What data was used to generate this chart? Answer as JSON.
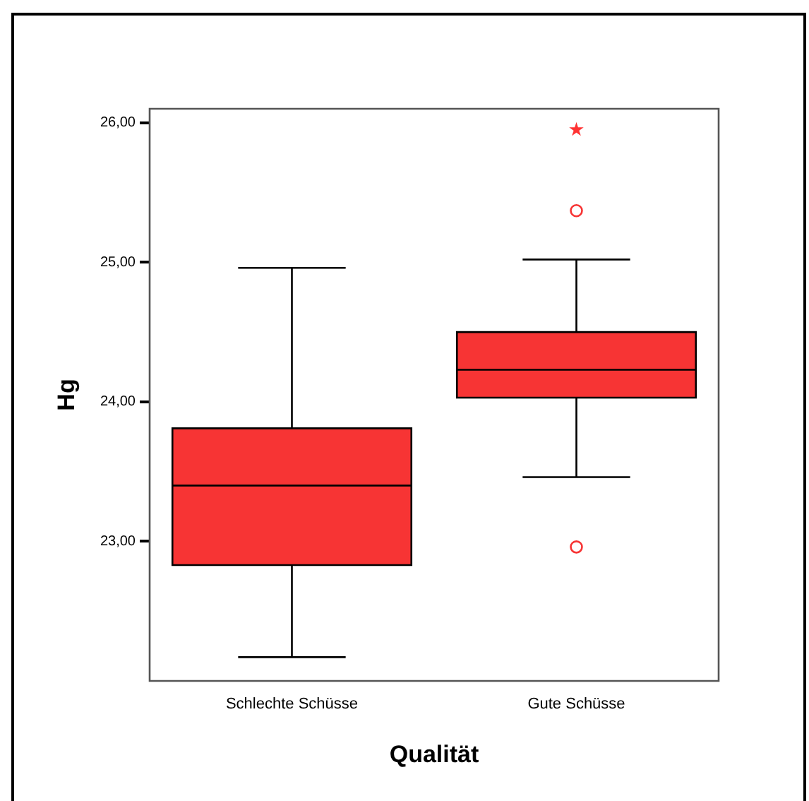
{
  "chart_data": {
    "type": "box",
    "xlabel": "Qualität",
    "ylabel": "Hg",
    "categories": [
      "Schlechte Schüsse",
      "Gute Schüsse"
    ],
    "color": "#f73434",
    "boxes": [
      {
        "low": 22.17,
        "q1": 22.83,
        "median": 23.4,
        "q3": 23.81,
        "high": 24.96
      },
      {
        "low": 23.46,
        "q1": 24.03,
        "median": 24.23,
        "q3": 24.5,
        "high": 25.02,
        "outliers": [
          25.37,
          22.96
        ]
      }
    ],
    "series": [
      {
        "type": "scatter",
        "marker": "star",
        "color": "#ff3333",
        "values": [
          null,
          25.95
        ]
      }
    ],
    "ylim": [
      22.0,
      26.1
    ],
    "yticks": [
      {
        "value": 23,
        "label": "23,00"
      },
      {
        "value": 24,
        "label": "24,00"
      },
      {
        "value": 25,
        "label": "25,00"
      },
      {
        "value": 26,
        "label": "26,00"
      }
    ],
    "grid": false,
    "legend": false
  }
}
